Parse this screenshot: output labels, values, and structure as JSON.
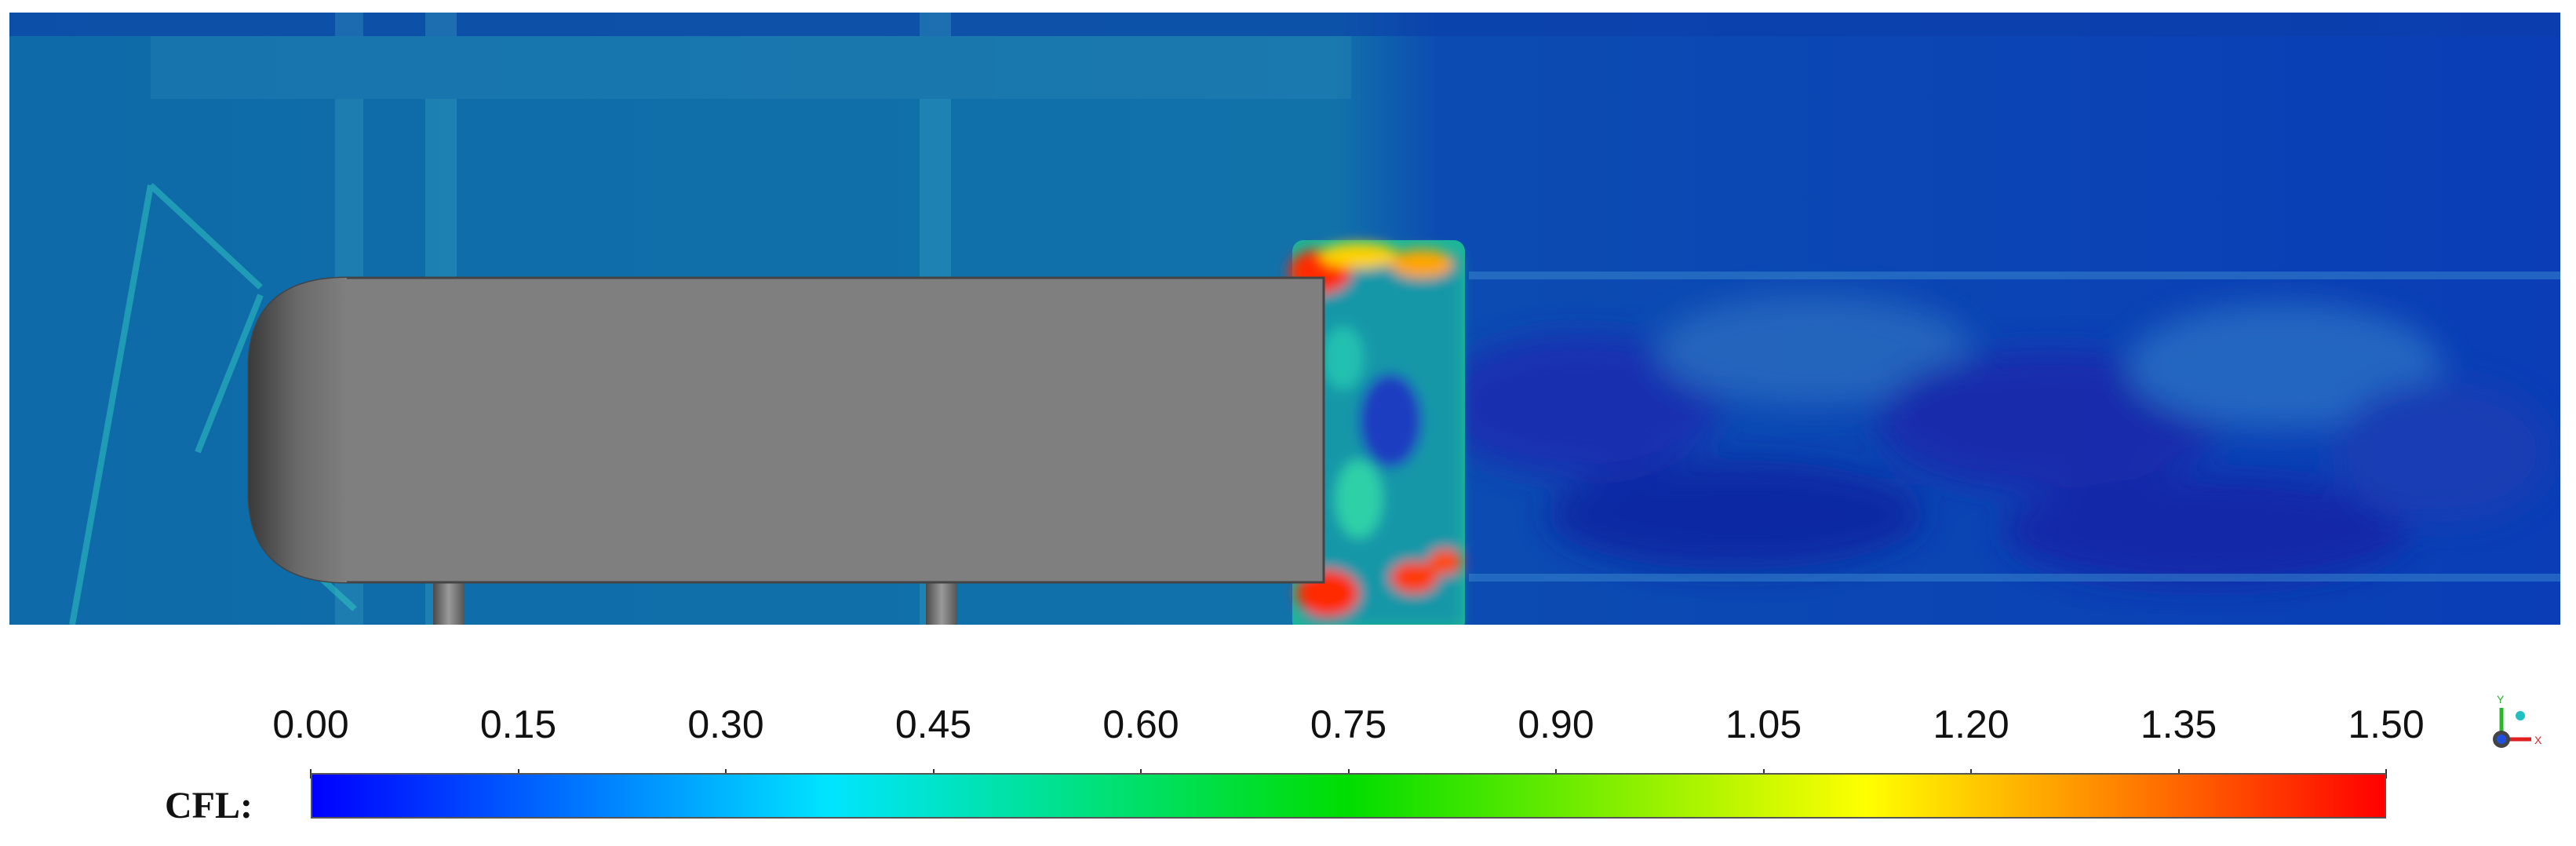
{
  "colorbar": {
    "title": "CFL:",
    "ticks": [
      "0.00",
      "0.15",
      "0.30",
      "0.45",
      "0.60",
      "0.75",
      "0.90",
      "1.05",
      "1.20",
      "1.35",
      "1.50"
    ],
    "range": [
      0.0,
      1.5
    ],
    "colormap": [
      "#0000ff",
      "#00e5ff",
      "#00dd00",
      "#ffff00",
      "#ff0000"
    ]
  },
  "colors": {
    "domain_dark": "#0a34b4",
    "domain_light": "#1673ad",
    "body_gray": "#7f7f7f",
    "background": "#ffffff"
  },
  "icons": {
    "orientation_axes": "axes-triad-icon"
  },
  "axes_widget": {
    "y_label": "Y",
    "x_label": "X"
  }
}
